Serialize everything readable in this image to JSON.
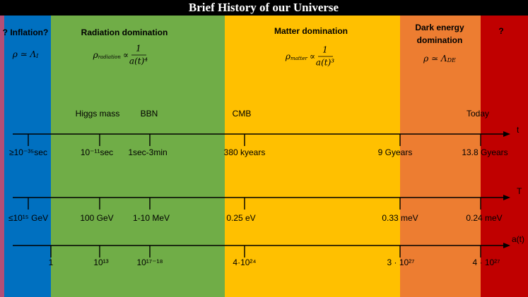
{
  "title": "Brief History of our Universe",
  "eras": [
    {
      "label": [
        "? Inflation?"
      ],
      "formula": {
        "base": "ρ ≃ Λ",
        "sub": "I"
      }
    },
    {
      "label": [
        "Radiation domination"
      ],
      "formula": {
        "base": "ρ",
        "sub": "radiation",
        "relation": "∝",
        "numerator": "1",
        "denominator": "a(t)⁴"
      }
    },
    {
      "label": [
        "Matter domination"
      ],
      "formula": {
        "base": "ρ",
        "sub": "matter",
        "relation": "∝",
        "numerator": "1",
        "denominator": "a(t)³"
      }
    },
    {
      "label": [
        "Dark energy",
        "domination"
      ],
      "formula": {
        "base": "ρ ≃ Λ",
        "sub": "DE"
      }
    },
    {
      "label": [
        "?"
      ]
    }
  ],
  "events": [
    "Higgs mass",
    "BBN",
    "CMB",
    "Today"
  ],
  "axes": [
    {
      "name": "t",
      "ticks": [
        "≥10⁻³⁵sec",
        "10⁻¹¹sec",
        "1sec-3min",
        "380 kyears",
        "9 Gyears",
        "13.8 Gyears"
      ]
    },
    {
      "name": "T",
      "ticks": [
        "≤10¹⁵ GeV",
        "100 GeV",
        "1-10 MeV",
        "0.25 eV",
        "0.33 meV",
        "0.24 meV"
      ]
    },
    {
      "name": "a(t)",
      "ticks": [
        "1",
        "10¹³",
        "10¹⁷⁻¹⁸",
        "4·10²⁴",
        "3 · 10²⁷",
        "4 · 10²⁷"
      ]
    }
  ]
}
